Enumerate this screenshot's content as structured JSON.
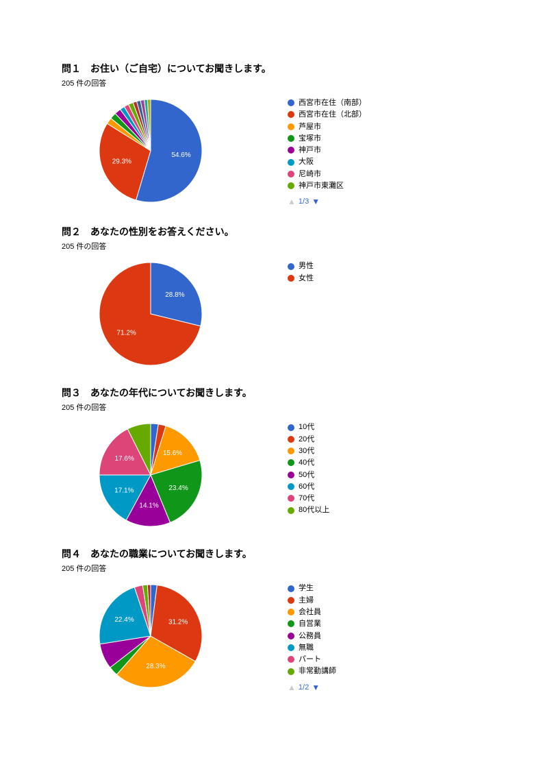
{
  "palette": {
    "blue": "#3366cc",
    "red": "#dc3912",
    "orange": "#ff9900",
    "green": "#109618",
    "purple": "#990099",
    "cyan": "#0099c6",
    "magenta": "#dd4477",
    "lime": "#66aa00",
    "darkred": "#b82e2e",
    "indigo": "#316395",
    "olive": "#994499",
    "teal": "#22aa99",
    "slate": "#aaaa11",
    "darkorange": "#6633cc",
    "maroon": "#e67300",
    "lightgrey": "#cccccc"
  },
  "questions": [
    {
      "id": "q1",
      "title": "問１　お住い（ご自宅）についてお聞きします。",
      "sub": "205 件の回答",
      "type": "pie",
      "pie": {
        "radius": 75,
        "start_angle_deg": -90,
        "slices": [
          {
            "value": 54.6,
            "color": "#3366cc",
            "label_distance": 0.6,
            "show_label": true
          },
          {
            "value": 29.3,
            "color": "#dc3912",
            "label_distance": 0.6,
            "show_label": true
          },
          {
            "value": 2.0,
            "color": "#ff9900",
            "show_label": false
          },
          {
            "value": 2.0,
            "color": "#109618",
            "show_label": false
          },
          {
            "value": 2.0,
            "color": "#990099",
            "show_label": false
          },
          {
            "value": 1.5,
            "color": "#0099c6",
            "show_label": false
          },
          {
            "value": 1.5,
            "color": "#dd4477",
            "show_label": false
          },
          {
            "value": 1.5,
            "color": "#66aa00",
            "show_label": false
          },
          {
            "value": 1.2,
            "color": "#b82e2e",
            "show_label": false
          },
          {
            "value": 1.2,
            "color": "#316395",
            "show_label": false
          },
          {
            "value": 1.2,
            "color": "#994499",
            "show_label": false
          },
          {
            "value": 1.0,
            "color": "#22aa99",
            "show_label": false
          },
          {
            "value": 1.0,
            "color": "#aaaa11",
            "show_label": false
          }
        ]
      },
      "legend": [
        {
          "color": "#3366cc",
          "label": "西宮市在住（南部）"
        },
        {
          "color": "#dc3912",
          "label": "西宮市在住（北部）"
        },
        {
          "color": "#ff9900",
          "label": "芦屋市"
        },
        {
          "color": "#109618",
          "label": "宝塚市"
        },
        {
          "color": "#990099",
          "label": "神戸市"
        },
        {
          "color": "#0099c6",
          "label": "大阪"
        },
        {
          "color": "#dd4477",
          "label": "尼崎市"
        },
        {
          "color": "#66aa00",
          "label": "神戸市東灘区"
        }
      ],
      "pager": "1/3"
    },
    {
      "id": "q2",
      "title": "問２　あなたの性別をお答えください。",
      "sub": "205 件の回答",
      "type": "pie",
      "pie": {
        "radius": 75,
        "start_angle_deg": -90,
        "slices": [
          {
            "value": 28.8,
            "color": "#3366cc",
            "label_distance": 0.6,
            "show_label": true
          },
          {
            "value": 71.2,
            "color": "#dc3912",
            "label_distance": 0.6,
            "show_label": true
          }
        ]
      },
      "legend": [
        {
          "color": "#3366cc",
          "label": "男性"
        },
        {
          "color": "#dc3912",
          "label": "女性"
        }
      ],
      "pager": null
    },
    {
      "id": "q3",
      "title": "問３　あなたの年代についてお聞きします。",
      "sub": "205 件の回答",
      "type": "pie",
      "pie": {
        "radius": 75,
        "start_angle_deg": -90,
        "slices": [
          {
            "value": 2.4,
            "color": "#3366cc",
            "show_label": false
          },
          {
            "value": 2.4,
            "color": "#dc3912",
            "show_label": false
          },
          {
            "value": 15.6,
            "color": "#ff9900",
            "label_distance": 0.6,
            "show_label": true
          },
          {
            "value": 23.4,
            "color": "#109618",
            "label_distance": 0.6,
            "show_label": true
          },
          {
            "value": 14.1,
            "color": "#990099",
            "label_distance": 0.6,
            "show_label": true
          },
          {
            "value": 17.1,
            "color": "#0099c6",
            "label_distance": 0.6,
            "show_label": true
          },
          {
            "value": 17.6,
            "color": "#dd4477",
            "label_distance": 0.6,
            "show_label": true
          },
          {
            "value": 7.4,
            "color": "#66aa00",
            "show_label": false
          }
        ]
      },
      "legend": [
        {
          "color": "#3366cc",
          "label": "10代"
        },
        {
          "color": "#dc3912",
          "label": "20代"
        },
        {
          "color": "#ff9900",
          "label": "30代"
        },
        {
          "color": "#109618",
          "label": "40代"
        },
        {
          "color": "#990099",
          "label": "50代"
        },
        {
          "color": "#0099c6",
          "label": "60代"
        },
        {
          "color": "#dd4477",
          "label": "70代"
        },
        {
          "color": "#66aa00",
          "label": "80代以上"
        }
      ],
      "pager": null
    },
    {
      "id": "q4",
      "title": "問４　あなたの職業についてお聞きします。",
      "sub": "205 件の回答",
      "type": "pie",
      "pie": {
        "radius": 75,
        "start_angle_deg": -90,
        "slices": [
          {
            "value": 2.0,
            "color": "#3366cc",
            "show_label": false
          },
          {
            "value": 31.2,
            "color": "#dc3912",
            "label_distance": 0.6,
            "show_label": true
          },
          {
            "value": 28.3,
            "color": "#ff9900",
            "label_distance": 0.6,
            "show_label": true
          },
          {
            "value": 3.0,
            "color": "#109618",
            "show_label": false
          },
          {
            "value": 8.0,
            "color": "#990099",
            "show_label": false
          },
          {
            "value": 22.4,
            "color": "#0099c6",
            "label_distance": 0.6,
            "show_label": true
          },
          {
            "value": 2.6,
            "color": "#dd4477",
            "show_label": false
          },
          {
            "value": 1.5,
            "color": "#66aa00",
            "show_label": false
          },
          {
            "value": 1.0,
            "color": "#b82e2e",
            "show_label": false
          }
        ]
      },
      "legend": [
        {
          "color": "#3366cc",
          "label": "学生"
        },
        {
          "color": "#dc3912",
          "label": "主婦"
        },
        {
          "color": "#ff9900",
          "label": "会社員"
        },
        {
          "color": "#109618",
          "label": "自営業"
        },
        {
          "color": "#990099",
          "label": "公務員"
        },
        {
          "color": "#0099c6",
          "label": "無職"
        },
        {
          "color": "#dd4477",
          "label": "パート"
        },
        {
          "color": "#66aa00",
          "label": "非常勤講師"
        }
      ],
      "pager": "1/2"
    }
  ]
}
